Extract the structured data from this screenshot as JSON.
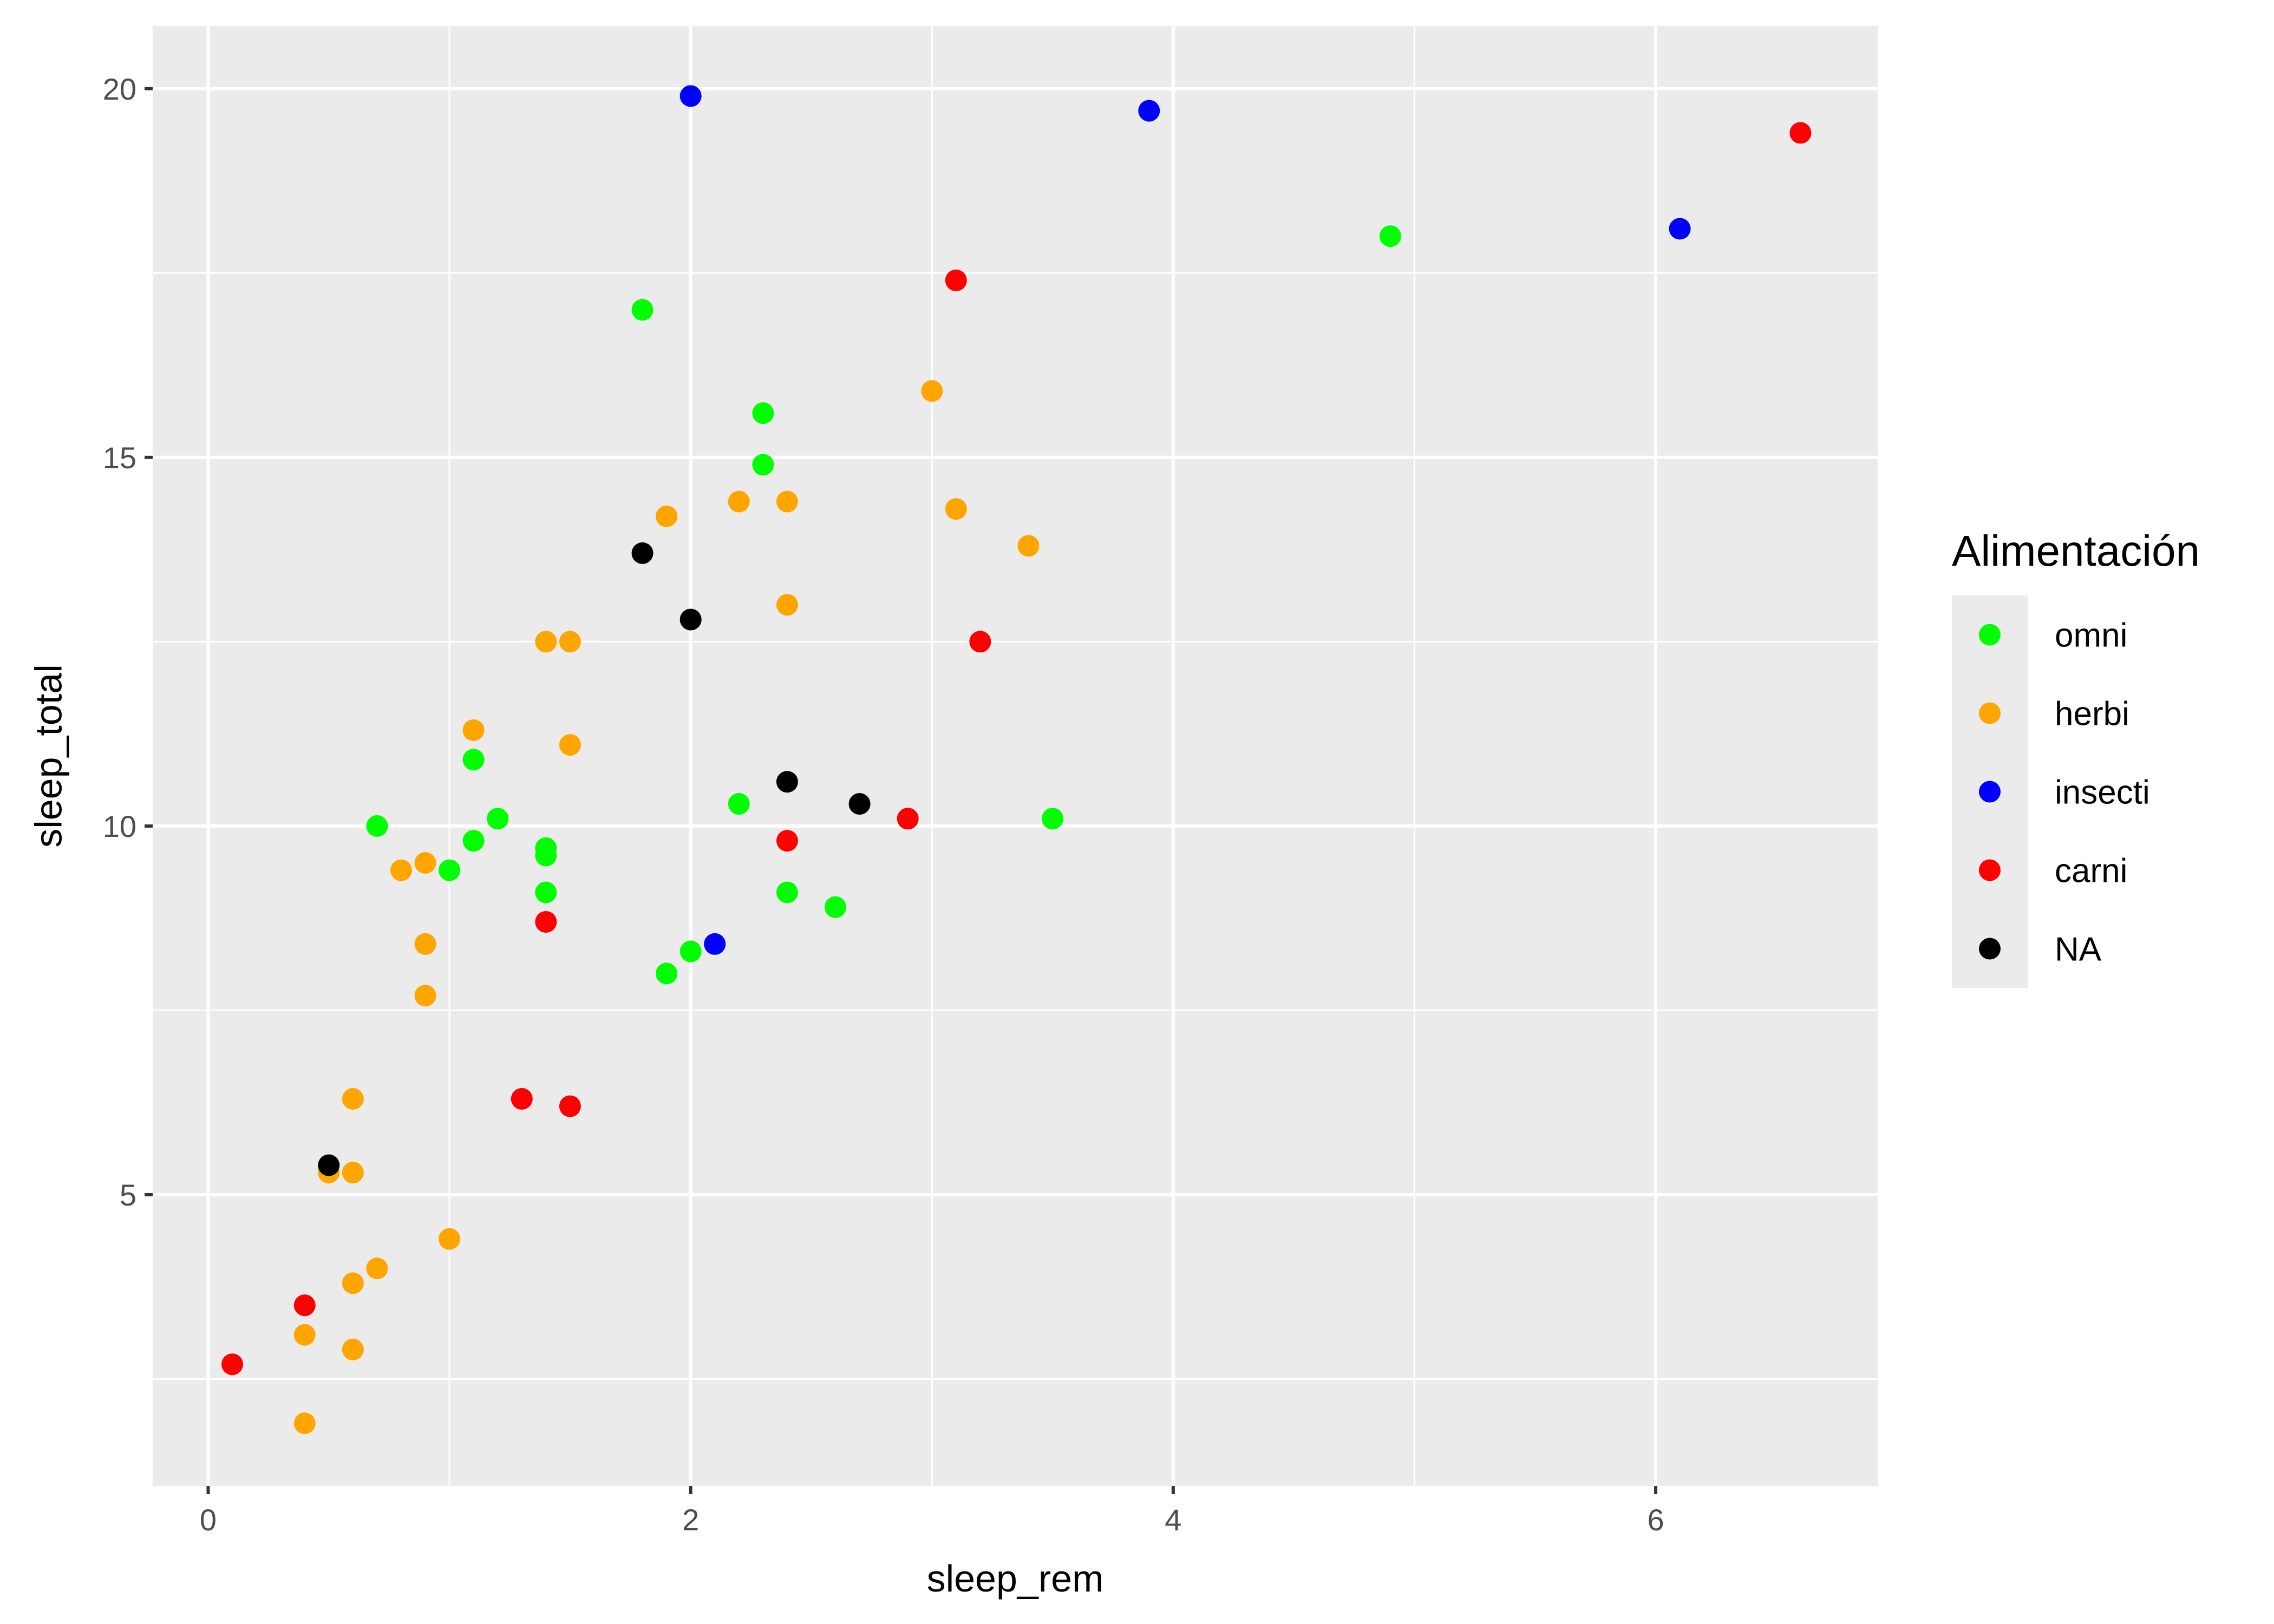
{
  "chart_data": {
    "type": "scatter",
    "title": "",
    "xlabel": "sleep_rem",
    "ylabel": "sleep_total",
    "xlim": [
      -0.23,
      6.92
    ],
    "ylim": [
      1.05,
      20.85
    ],
    "x_ticks": [
      0,
      2,
      4,
      6
    ],
    "y_ticks": [
      5,
      10,
      15,
      20
    ],
    "grid": true,
    "legend_position": "right",
    "legend": {
      "title": "Alimentación",
      "entries": [
        {
          "label": "omni",
          "color": "#00ff00"
        },
        {
          "label": "herbi",
          "color": "#ffa500"
        },
        {
          "label": "insecti",
          "color": "#0000ff"
        },
        {
          "label": "carni",
          "color": "#ff0000"
        },
        {
          "label": "NA",
          "color": "#000000"
        }
      ]
    },
    "series": [
      {
        "name": "omni",
        "color": "#00ff00",
        "points": [
          {
            "x": 1.8,
            "y": 17.0
          },
          {
            "x": 2.3,
            "y": 15.6
          },
          {
            "x": 2.3,
            "y": 14.9
          },
          {
            "x": 4.9,
            "y": 18.0
          },
          {
            "x": 0.7,
            "y": 10.0
          },
          {
            "x": 1.1,
            "y": 10.9
          },
          {
            "x": 1.2,
            "y": 10.1
          },
          {
            "x": 1.1,
            "y": 9.8
          },
          {
            "x": 1.0,
            "y": 9.4
          },
          {
            "x": 1.4,
            "y": 9.7
          },
          {
            "x": 1.4,
            "y": 9.6
          },
          {
            "x": 1.4,
            "y": 9.1
          },
          {
            "x": 1.9,
            "y": 8.0
          },
          {
            "x": 2.0,
            "y": 8.3
          },
          {
            "x": 2.2,
            "y": 10.3
          },
          {
            "x": 2.4,
            "y": 9.1
          },
          {
            "x": 2.6,
            "y": 8.9
          },
          {
            "x": 3.5,
            "y": 10.1
          }
        ]
      },
      {
        "name": "herbi",
        "color": "#ffa500",
        "points": [
          {
            "x": 3.0,
            "y": 15.9
          },
          {
            "x": 1.9,
            "y": 14.2
          },
          {
            "x": 2.2,
            "y": 14.4
          },
          {
            "x": 2.4,
            "y": 14.4
          },
          {
            "x": 3.1,
            "y": 14.3
          },
          {
            "x": 3.4,
            "y": 13.8
          },
          {
            "x": 2.4,
            "y": 13.0
          },
          {
            "x": 1.4,
            "y": 12.5
          },
          {
            "x": 1.5,
            "y": 12.5
          },
          {
            "x": 1.1,
            "y": 11.3
          },
          {
            "x": 1.5,
            "y": 11.1
          },
          {
            "x": 0.8,
            "y": 9.4
          },
          {
            "x": 0.9,
            "y": 9.5
          },
          {
            "x": 0.9,
            "y": 8.4
          },
          {
            "x": 0.9,
            "y": 7.7
          },
          {
            "x": 0.6,
            "y": 6.3
          },
          {
            "x": 0.5,
            "y": 5.3
          },
          {
            "x": 0.6,
            "y": 5.3
          },
          {
            "x": 1.0,
            "y": 4.4
          },
          {
            "x": 0.7,
            "y": 4.0
          },
          {
            "x": 0.6,
            "y": 3.8
          },
          {
            "x": 0.4,
            "y": 3.1
          },
          {
            "x": 0.6,
            "y": 2.9
          },
          {
            "x": 0.4,
            "y": 1.9
          }
        ]
      },
      {
        "name": "insecti",
        "color": "#0000ff",
        "points": [
          {
            "x": 2.0,
            "y": 19.9
          },
          {
            "x": 3.9,
            "y": 19.7
          },
          {
            "x": 6.1,
            "y": 18.1
          },
          {
            "x": 2.1,
            "y": 8.4
          }
        ]
      },
      {
        "name": "carni",
        "color": "#ff0000",
        "points": [
          {
            "x": 6.6,
            "y": 19.4
          },
          {
            "x": 3.1,
            "y": 17.4
          },
          {
            "x": 3.2,
            "y": 12.5
          },
          {
            "x": 2.9,
            "y": 10.1
          },
          {
            "x": 2.4,
            "y": 9.8
          },
          {
            "x": 1.4,
            "y": 8.7
          },
          {
            "x": 1.3,
            "y": 6.3
          },
          {
            "x": 1.5,
            "y": 6.2
          },
          {
            "x": 0.4,
            "y": 3.5
          },
          {
            "x": 0.1,
            "y": 2.7
          }
        ]
      },
      {
        "name": "NA",
        "color": "#000000",
        "points": [
          {
            "x": 1.8,
            "y": 13.7
          },
          {
            "x": 2.0,
            "y": 12.8
          },
          {
            "x": 2.4,
            "y": 10.6
          },
          {
            "x": 2.7,
            "y": 10.3
          },
          {
            "x": 0.5,
            "y": 5.4
          }
        ]
      }
    ]
  }
}
